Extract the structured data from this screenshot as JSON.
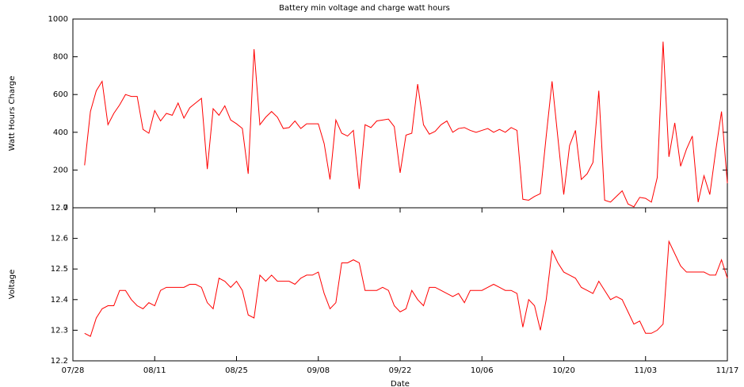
{
  "chart_data": [
    {
      "type": "line",
      "title": "Battery min voltage and charge watt hours",
      "ylabel": "Watt Hours Charge",
      "x": [
        "07/30",
        "07/31",
        "08/01",
        "08/02",
        "08/03",
        "08/04",
        "08/05",
        "08/06",
        "08/07",
        "08/08",
        "08/09",
        "08/10",
        "08/11",
        "08/12",
        "08/13",
        "08/14",
        "08/15",
        "08/16",
        "08/17",
        "08/18",
        "08/19",
        "08/20",
        "08/21",
        "08/22",
        "08/23",
        "08/24",
        "08/25",
        "08/26",
        "08/27",
        "08/28",
        "08/29",
        "08/30",
        "08/31",
        "09/01",
        "09/02",
        "09/03",
        "09/04",
        "09/05",
        "09/06",
        "09/07",
        "09/08",
        "09/09",
        "09/10",
        "09/11",
        "09/12",
        "09/13",
        "09/14",
        "09/15",
        "09/16",
        "09/17",
        "09/18",
        "09/19",
        "09/20",
        "09/21",
        "09/22",
        "09/23",
        "09/24",
        "09/25",
        "09/26",
        "09/27",
        "09/28",
        "09/29",
        "09/30",
        "10/01",
        "10/02",
        "10/03",
        "10/04",
        "10/05",
        "10/06",
        "10/07",
        "10/08",
        "10/09",
        "10/10",
        "10/11",
        "10/12",
        "10/13",
        "10/14",
        "10/15",
        "10/16",
        "10/17",
        "10/18",
        "10/19",
        "10/20",
        "10/21",
        "10/22",
        "10/23",
        "10/24",
        "10/25",
        "10/26",
        "10/27",
        "10/28",
        "10/29",
        "10/30",
        "10/31",
        "11/01",
        "11/02",
        "11/03",
        "11/04",
        "11/05",
        "11/06",
        "11/07",
        "11/08",
        "11/09",
        "11/10",
        "11/11",
        "11/12",
        "11/13",
        "11/14",
        "11/15",
        "11/16",
        "11/17"
      ],
      "series": [
        {
          "color": "#ff0000",
          "values": [
            225,
            510,
            620,
            670,
            440,
            500,
            545,
            600,
            590,
            590,
            415,
            395,
            515,
            460,
            500,
            490,
            555,
            475,
            530,
            555,
            580,
            205,
            525,
            490,
            540,
            465,
            445,
            420,
            180,
            840,
            440,
            480,
            510,
            480,
            420,
            425,
            460,
            420,
            445,
            445,
            445,
            340,
            150,
            465,
            395,
            380,
            410,
            100,
            440,
            425,
            460,
            465,
            470,
            430,
            185,
            385,
            395,
            655,
            440,
            390,
            405,
            440,
            460,
            400,
            420,
            425,
            410,
            400,
            410,
            420,
            400,
            415,
            400,
            425,
            410,
            45,
            40,
            60,
            75,
            380,
            670,
            370,
            70,
            330,
            410,
            150,
            180,
            240,
            620,
            40,
            30,
            60,
            90,
            20,
            5,
            55,
            50,
            30,
            160,
            880,
            270,
            450,
            220,
            310,
            380,
            30,
            170,
            70,
            300,
            510,
            130
          ]
        }
      ],
      "xlim": [
        "07/28",
        "11/17"
      ],
      "ylim": [
        0,
        1000
      ],
      "yticks": [
        0,
        200,
        400,
        600,
        800,
        1000
      ]
    },
    {
      "type": "line",
      "ylabel": "Voltage",
      "xlabel": "Date",
      "x": [
        "07/30",
        "07/31",
        "08/01",
        "08/02",
        "08/03",
        "08/04",
        "08/05",
        "08/06",
        "08/07",
        "08/08",
        "08/09",
        "08/10",
        "08/11",
        "08/12",
        "08/13",
        "08/14",
        "08/15",
        "08/16",
        "08/17",
        "08/18",
        "08/19",
        "08/20",
        "08/21",
        "08/22",
        "08/23",
        "08/24",
        "08/25",
        "08/26",
        "08/27",
        "08/28",
        "08/29",
        "08/30",
        "08/31",
        "09/01",
        "09/02",
        "09/03",
        "09/04",
        "09/05",
        "09/06",
        "09/07",
        "09/08",
        "09/09",
        "09/10",
        "09/11",
        "09/12",
        "09/13",
        "09/14",
        "09/15",
        "09/16",
        "09/17",
        "09/18",
        "09/19",
        "09/20",
        "09/21",
        "09/22",
        "09/23",
        "09/24",
        "09/25",
        "09/26",
        "09/27",
        "09/28",
        "09/29",
        "09/30",
        "10/01",
        "10/02",
        "10/03",
        "10/04",
        "10/05",
        "10/06",
        "10/07",
        "10/08",
        "10/09",
        "10/10",
        "10/11",
        "10/12",
        "10/13",
        "10/14",
        "10/15",
        "10/16",
        "10/17",
        "10/18",
        "10/19",
        "10/20",
        "10/21",
        "10/22",
        "10/23",
        "10/24",
        "10/25",
        "10/26",
        "10/27",
        "10/28",
        "10/29",
        "10/30",
        "10/31",
        "11/01",
        "11/02",
        "11/03",
        "11/04",
        "11/05",
        "11/06",
        "11/07",
        "11/08",
        "11/09",
        "11/10",
        "11/11",
        "11/12",
        "11/13",
        "11/14",
        "11/15",
        "11/16",
        "11/17"
      ],
      "series": [
        {
          "color": "#ff0000",
          "values": [
            12.29,
            12.28,
            12.34,
            12.37,
            12.38,
            12.38,
            12.43,
            12.43,
            12.4,
            12.38,
            12.37,
            12.39,
            12.38,
            12.43,
            12.44,
            12.44,
            12.44,
            12.44,
            12.45,
            12.45,
            12.44,
            12.39,
            12.37,
            12.47,
            12.46,
            12.44,
            12.46,
            12.43,
            12.35,
            12.34,
            12.48,
            12.46,
            12.48,
            12.46,
            12.46,
            12.46,
            12.45,
            12.47,
            12.48,
            12.48,
            12.49,
            12.42,
            12.37,
            12.39,
            12.52,
            12.52,
            12.53,
            12.52,
            12.43,
            12.43,
            12.43,
            12.44,
            12.43,
            12.38,
            12.36,
            12.37,
            12.43,
            12.4,
            12.38,
            12.44,
            12.44,
            12.43,
            12.42,
            12.41,
            12.42,
            12.39,
            12.43,
            12.43,
            12.43,
            12.44,
            12.45,
            12.44,
            12.43,
            12.43,
            12.42,
            12.31,
            12.4,
            12.38,
            12.3,
            12.4,
            12.56,
            12.52,
            12.49,
            12.48,
            12.47,
            12.44,
            12.43,
            12.42,
            12.46,
            12.43,
            12.4,
            12.41,
            12.4,
            12.36,
            12.32,
            12.33,
            12.29,
            12.29,
            12.3,
            12.32,
            12.59,
            12.55,
            12.51,
            12.49,
            12.49,
            12.49,
            12.49,
            12.48,
            12.48,
            12.53,
            12.47
          ]
        }
      ],
      "xlim": [
        "07/28",
        "11/17"
      ],
      "xticks": [
        "07/28",
        "08/11",
        "08/25",
        "09/08",
        "09/22",
        "10/06",
        "10/20",
        "11/03",
        "11/17"
      ],
      "ylim": [
        12.2,
        12.7
      ],
      "yticks": [
        12.2,
        12.3,
        12.4,
        12.5,
        12.6,
        12.7
      ]
    }
  ]
}
